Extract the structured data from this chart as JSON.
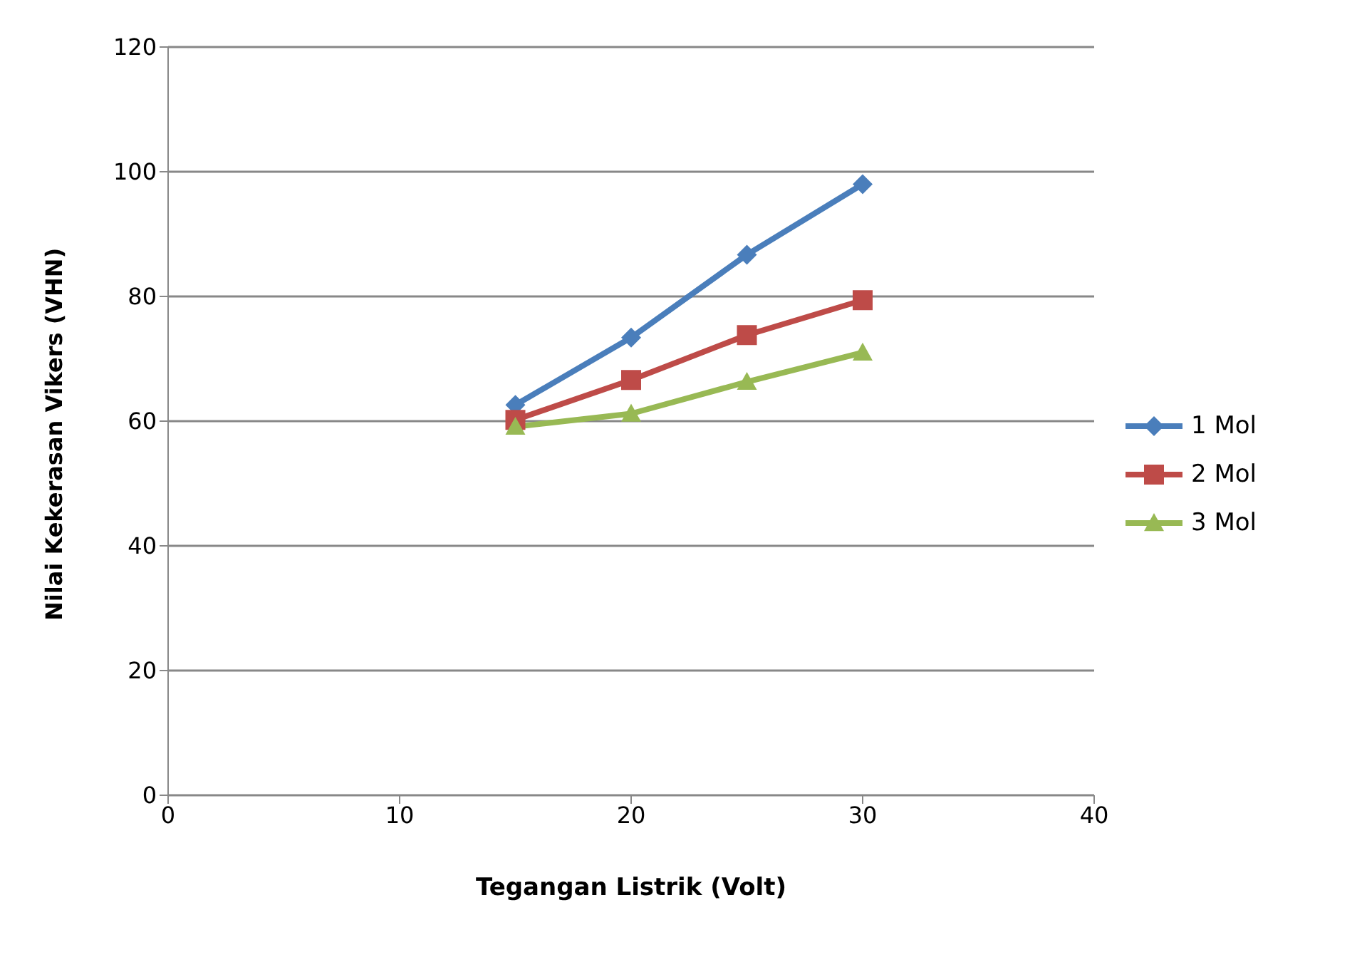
{
  "chart_data": {
    "type": "line",
    "xlabel": "Tegangan Listrik (Volt)",
    "ylabel": "Nilai Kekerasan  Vikers (VHN)",
    "x": [
      15,
      20,
      25,
      30
    ],
    "series": [
      {
        "name": "1 Mol",
        "color": "#4a7ebb",
        "marker": "diamond",
        "values": [
          62.6,
          73.4,
          86.7,
          98.0
        ]
      },
      {
        "name": "2 Mol",
        "color": "#be4b48",
        "marker": "square",
        "values": [
          60.2,
          66.6,
          73.8,
          79.4
        ]
      },
      {
        "name": "3 Mol",
        "color": "#98b954",
        "marker": "triangle",
        "values": [
          59.1,
          61.2,
          66.3,
          71.0
        ]
      }
    ],
    "xlim": [
      0,
      40
    ],
    "xticks": [
      0,
      10,
      20,
      30,
      40
    ],
    "ylim": [
      0,
      120
    ],
    "yticks": [
      0,
      20,
      40,
      60,
      80,
      100,
      120
    ],
    "grid": "y",
    "legend": "right",
    "line_style": "solid"
  }
}
